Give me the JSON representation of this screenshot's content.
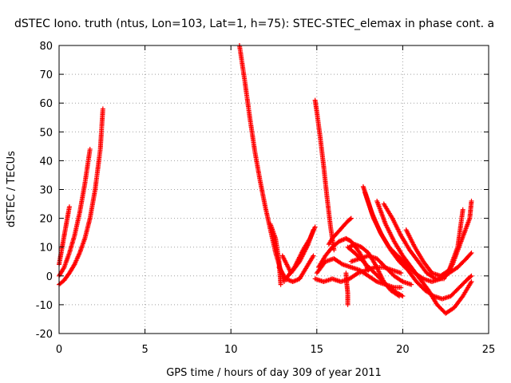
{
  "chart_data": {
    "type": "scatter",
    "title": "dSTEC Iono. truth (ntus, Lon=103, Lat=1, h=75): STEC-STEC_elemax in phase cont. a",
    "xlabel": "GPS time / hours of day 309 of year 2011",
    "ylabel": "dSTEC  / TECUs",
    "xlim": [
      0,
      25
    ],
    "ylim": [
      -20,
      80
    ],
    "xticks": [
      0,
      5,
      10,
      15,
      20,
      25
    ],
    "yticks": [
      -20,
      -10,
      0,
      10,
      20,
      30,
      40,
      50,
      60,
      70,
      80
    ],
    "grid": true,
    "marker": "plus",
    "color": "#ff0000",
    "series": [
      {
        "x": [
          0.0,
          0.3,
          0.6,
          0.9,
          1.2,
          1.5,
          1.8,
          2.1,
          2.4,
          2.55
        ],
        "y": [
          -3,
          -1.5,
          1,
          4,
          8,
          13,
          20,
          30,
          44,
          58
        ]
      },
      {
        "x": [
          0.0,
          0.3,
          0.6,
          0.9,
          1.2,
          1.5,
          1.8
        ],
        "y": [
          0,
          3,
          8,
          14,
          22,
          32,
          44
        ]
      },
      {
        "x": [
          0.0,
          0.15,
          0.3,
          0.45,
          0.6
        ],
        "y": [
          4,
          9,
          14,
          19,
          24
        ]
      },
      {
        "x": [
          10.5,
          10.8,
          11.1,
          11.4,
          11.7,
          12.0,
          12.3,
          12.6,
          12.9,
          13.1
        ],
        "y": [
          80,
          68,
          55,
          43,
          33,
          24,
          16,
          8,
          2,
          -2
        ]
      },
      {
        "x": [
          12.3,
          12.6,
          12.8,
          12.9
        ],
        "y": [
          18,
          13,
          5,
          -3
        ]
      },
      {
        "x": [
          12.8,
          13.2,
          13.6,
          14.0,
          14.4,
          14.8
        ],
        "y": [
          3,
          -1,
          -2,
          -1,
          3,
          7
        ]
      },
      {
        "x": [
          13.0,
          13.5,
          14.0,
          14.5,
          14.8
        ],
        "y": [
          7,
          1,
          5,
          11,
          16
        ]
      },
      {
        "x": [
          13.2,
          13.7,
          14.2,
          14.6,
          14.9
        ],
        "y": [
          -1,
          3,
          9,
          13,
          17
        ]
      },
      {
        "x": [
          14.9,
          15.0,
          15.2,
          15.4,
          15.6,
          15.8,
          16.0
        ],
        "y": [
          61,
          57,
          48,
          38,
          27,
          17,
          9
        ]
      },
      {
        "x": [
          14.9,
          15.4,
          15.9,
          16.4,
          16.9,
          17.4,
          17.9,
          18.4,
          18.9,
          19.4,
          19.9
        ],
        "y": [
          -1,
          -2,
          -1,
          -2,
          -1,
          1,
          2,
          3,
          3,
          2,
          1
        ]
      },
      {
        "x": [
          15.0,
          15.5,
          16.0,
          16.5,
          17.0,
          17.5,
          18.0,
          18.5,
          19.0,
          19.5,
          19.9
        ],
        "y": [
          1,
          5,
          6,
          4,
          3,
          2,
          0,
          -2,
          -3,
          -4,
          -4
        ]
      },
      {
        "x": [
          15.1,
          15.5,
          15.9,
          16.3,
          16.7,
          17.0,
          17.5,
          18.0
        ],
        "y": [
          3,
          7,
          10,
          12,
          13,
          12,
          8,
          2
        ]
      },
      {
        "x": [
          15.7,
          15.9,
          16.2,
          16.5,
          16.8,
          17.0
        ],
        "y": [
          11,
          13,
          15,
          17,
          19,
          20
        ]
      },
      {
        "x": [
          16.7,
          16.75,
          16.8,
          16.8
        ],
        "y": [
          1,
          -3,
          -6,
          -10
        ]
      },
      {
        "x": [
          16.8,
          17.2,
          17.7,
          18.2,
          18.7,
          19.2,
          19.7,
          20.0
        ],
        "y": [
          10,
          8,
          5,
          2,
          -1,
          -4,
          -6,
          -7
        ]
      },
      {
        "x": [
          16.9,
          17.2,
          17.6,
          18.0,
          18.4,
          18.9,
          19.3,
          19.8
        ],
        "y": [
          10,
          11,
          10,
          8,
          4,
          -2,
          -5,
          -7
        ]
      },
      {
        "x": [
          17.0,
          17.5,
          18.0,
          18.5,
          19.0,
          19.5,
          20.0,
          20.5
        ],
        "y": [
          5,
          6,
          7,
          6,
          3,
          0,
          -2,
          -3
        ]
      },
      {
        "x": [
          17.7,
          18.2,
          18.7,
          19.2,
          19.7,
          20.2,
          20.7,
          21.2,
          21.7,
          22.2,
          22.7,
          23.2,
          23.7,
          24.0
        ],
        "y": [
          31,
          22,
          15,
          10,
          7,
          4,
          1,
          -1,
          -2,
          -1,
          1,
          3,
          6,
          8
        ]
      },
      {
        "x": [
          17.8,
          18.3,
          18.8,
          19.3,
          19.8,
          20.3,
          20.8,
          21.3,
          21.8,
          22.3,
          22.8,
          23.3,
          23.8,
          24.0
        ],
        "y": [
          29,
          20,
          14,
          9,
          5,
          2,
          -2,
          -5,
          -7,
          -8,
          -7,
          -4,
          -1,
          0
        ]
      },
      {
        "x": [
          18.5,
          19.0,
          19.5,
          20.0,
          20.5,
          21.0,
          21.5,
          22.0,
          22.5,
          23.0,
          23.5,
          24.0
        ],
        "y": [
          26,
          18,
          12,
          7,
          3,
          -1,
          -5,
          -10,
          -13,
          -11,
          -7,
          -2
        ]
      },
      {
        "x": [
          18.9,
          19.4,
          19.9,
          20.4,
          20.9,
          21.4,
          21.9,
          22.4,
          22.9,
          23.4,
          23.9,
          24.0
        ],
        "y": [
          25,
          20,
          14,
          9,
          5,
          1,
          -1,
          -1,
          4,
          12,
          20,
          26
        ]
      },
      {
        "x": [
          20.2,
          20.7,
          21.2,
          21.7,
          22.2,
          22.7,
          23.2,
          23.5
        ],
        "y": [
          16,
          10,
          5,
          1,
          0,
          2,
          10,
          23
        ]
      }
    ]
  }
}
